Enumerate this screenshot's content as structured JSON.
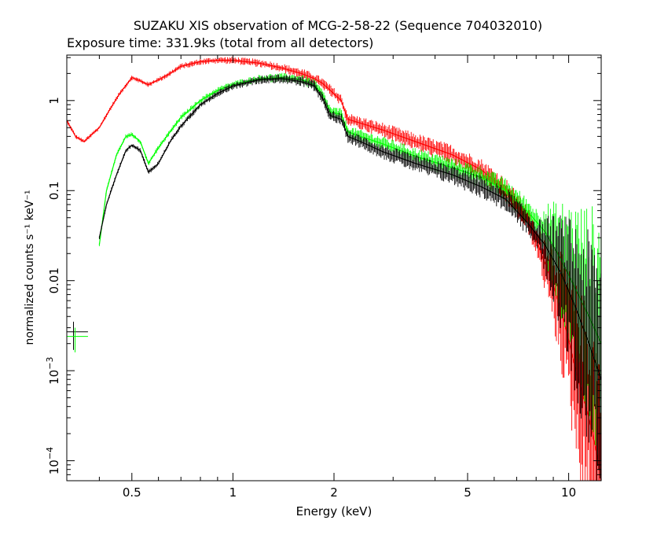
{
  "chart_data": {
    "type": "line",
    "title": "SUZAKU XIS observation of MCG-2-58-22 (Sequence 704032010)",
    "subtitle": "Exposure time: 331.9ks (total from all detectors)",
    "xlabel": "Energy (keV)",
    "ylabel": "normalized counts s⁻¹ keV⁻¹",
    "xscale": "log",
    "yscale": "log",
    "xlim": [
      0.32,
      12.5
    ],
    "ylim": [
      6e-05,
      3.2
    ],
    "x_ticks": [
      {
        "v": 0.5,
        "label": "0.5"
      },
      {
        "v": 1,
        "label": "1"
      },
      {
        "v": 2,
        "label": "2"
      },
      {
        "v": 5,
        "label": "5"
      },
      {
        "v": 10,
        "label": "10"
      }
    ],
    "y_ticks": [
      {
        "v": 1,
        "label": "1"
      },
      {
        "v": 0.1,
        "label": "0.1"
      },
      {
        "v": 0.01,
        "label": "0.01"
      },
      {
        "v": 0.001,
        "mant": "10",
        "exp": "−3"
      },
      {
        "v": 0.0001,
        "mant": "10",
        "exp": "−4"
      }
    ],
    "series": [
      {
        "color": "#ff0000",
        "x": [
          0.32,
          0.34,
          0.36,
          0.38,
          0.4,
          0.43,
          0.46,
          0.5,
          0.53,
          0.56,
          0.6,
          0.65,
          0.7,
          0.8,
          0.9,
          1.0,
          1.2,
          1.4,
          1.6,
          1.75,
          1.85,
          1.95,
          2.1,
          2.2,
          2.4,
          2.8,
          3.5,
          4.5,
          5.5,
          6.5,
          7.5,
          8.2,
          9.0,
          9.8,
          10.5,
          11.5,
          12.5
        ],
        "y": [
          0.6,
          0.4,
          0.35,
          0.42,
          0.5,
          0.8,
          1.2,
          1.8,
          1.65,
          1.5,
          1.7,
          2.0,
          2.4,
          2.7,
          2.8,
          2.8,
          2.6,
          2.3,
          2.0,
          1.75,
          1.55,
          1.3,
          1.0,
          0.62,
          0.56,
          0.47,
          0.35,
          0.25,
          0.17,
          0.1,
          0.05,
          0.022,
          0.009,
          0.003,
          0.001,
          0.0003,
          7e-05
        ]
      },
      {
        "color": "#00ff00",
        "x": [
          0.4,
          0.42,
          0.45,
          0.48,
          0.5,
          0.53,
          0.56,
          0.6,
          0.65,
          0.7,
          0.8,
          0.9,
          1.0,
          1.2,
          1.4,
          1.6,
          1.75,
          1.85,
          1.95,
          2.1,
          2.2,
          2.4,
          2.8,
          3.5,
          4.5,
          5.5,
          6.5,
          7.5,
          8.5,
          9.5,
          10.5,
          11.5,
          12.5
        ],
        "y": [
          0.025,
          0.1,
          0.25,
          0.4,
          0.42,
          0.35,
          0.2,
          0.3,
          0.45,
          0.65,
          1.0,
          1.3,
          1.5,
          1.75,
          1.8,
          1.7,
          1.5,
          1.15,
          0.75,
          0.7,
          0.45,
          0.4,
          0.33,
          0.24,
          0.18,
          0.14,
          0.1,
          0.06,
          0.035,
          0.017,
          0.008,
          0.004,
          0.002
        ]
      },
      {
        "color": "#000000",
        "x": [
          0.4,
          0.42,
          0.45,
          0.48,
          0.5,
          0.53,
          0.56,
          0.6,
          0.65,
          0.7,
          0.8,
          0.9,
          1.0,
          1.2,
          1.4,
          1.6,
          1.75,
          1.85,
          1.95,
          2.1,
          2.2,
          2.4,
          2.8,
          3.5,
          4.5,
          5.5,
          6.5,
          7.5,
          8.5,
          9.5,
          10.5,
          11.5,
          12.5
        ],
        "y": [
          0.03,
          0.07,
          0.15,
          0.28,
          0.32,
          0.28,
          0.16,
          0.2,
          0.35,
          0.52,
          0.9,
          1.2,
          1.45,
          1.7,
          1.75,
          1.62,
          1.45,
          1.05,
          0.68,
          0.62,
          0.4,
          0.35,
          0.27,
          0.2,
          0.15,
          0.11,
          0.08,
          0.045,
          0.025,
          0.012,
          0.005,
          0.002,
          0.0008
        ]
      }
    ],
    "bad_points": [
      {
        "color": "#000000",
        "x": 0.335,
        "xerr": [
          0.32,
          0.37
        ],
        "y": 0.0027,
        "yerr": [
          0.0017,
          0.0035
        ]
      },
      {
        "color": "#00ff00",
        "x": 0.335,
        "xerr": [
          0.32,
          0.37
        ],
        "y": 0.0024,
        "yerr": [
          0.0016,
          0.003
        ]
      }
    ]
  }
}
